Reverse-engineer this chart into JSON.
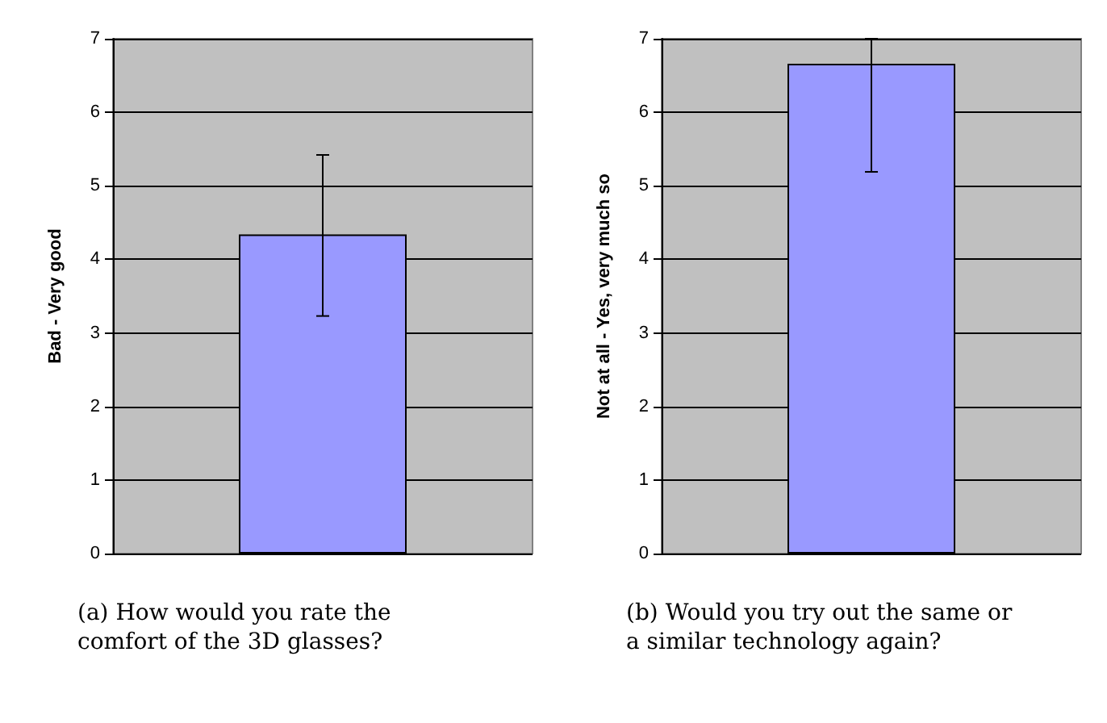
{
  "chart_data": [
    {
      "type": "bar",
      "ylabel": "Bad - Very good",
      "categories": [
        null
      ],
      "values": [
        4.34
      ],
      "color": "#9999ff",
      "errors": [
        [
          3.23,
          5.42
        ]
      ],
      "ylim": [
        0,
        7
      ],
      "yticks": [
        0,
        1,
        2,
        3,
        4,
        5,
        6,
        7
      ],
      "grid": "y",
      "annotations": [
        "(a) How would you rate the comfort of the 3D glasses?"
      ]
    },
    {
      "type": "bar",
      "ylabel": "Not at all - Yes, very much so",
      "categories": [
        null
      ],
      "values": [
        6.66
      ],
      "color": "#9999ff",
      "errors": [
        [
          5.19,
          7
        ]
      ],
      "ylim": [
        0,
        7
      ],
      "yticks": [
        0,
        1,
        2,
        3,
        4,
        5,
        6,
        7
      ],
      "grid": "y",
      "annotations": [
        "(b) Would you try out the same or a similar technology again?"
      ]
    }
  ]
}
